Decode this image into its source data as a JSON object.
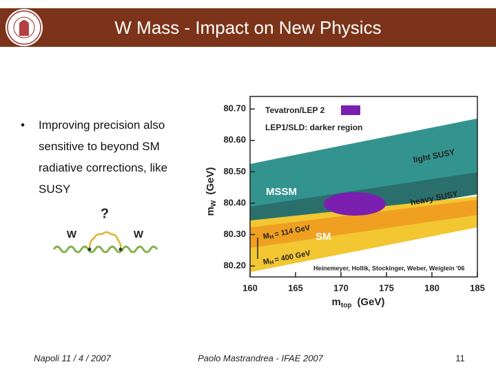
{
  "header": {
    "title": "W Mass - Impact on New Physics"
  },
  "bullets": [
    "Improving precision also sensitive to beyond SM radiative corrections, like SUSY"
  ],
  "diagram": {
    "question": "?",
    "left_label": "W",
    "right_label": "W"
  },
  "chart": {
    "legend": [
      "Tevatron/LEP 2",
      "LEP1/SLD: darker region"
    ],
    "annotations": {
      "light": "light SUSY",
      "heavy": "heavy SUSY",
      "mssm": "MSSM",
      "sm": "SM",
      "mh_low": {
        "symbol": "M",
        "sub": "H",
        "text": "= 114 GeV"
      },
      "mh_high": {
        "symbol": "M",
        "sub": "H",
        "text": "= 400 GeV"
      },
      "credit": "Heinemeyer, Hollik, Stockinger, Weber, Weiglein '06"
    },
    "x_label": {
      "symbol": "m",
      "sub": "top",
      "unit": "(GeV)"
    },
    "y_label": {
      "symbol": "m",
      "sub": "W",
      "unit": "(GeV)"
    },
    "xlim": [
      160,
      185
    ],
    "xticks": [
      160,
      165,
      170,
      175,
      180,
      185
    ],
    "ylim": [
      80.165,
      80.74
    ],
    "yticks": [
      {
        "value": 80.2,
        "label": "80.20"
      },
      {
        "value": 80.3,
        "label": "80.30"
      },
      {
        "value": 80.4,
        "label": "80.40"
      },
      {
        "value": 80.5,
        "label": "80.50"
      },
      {
        "value": 80.6,
        "label": "80.60"
      },
      {
        "value": 80.7,
        "label": "80.70"
      }
    ]
  },
  "footer": {
    "left": "Napoli 11 / 4 / 2007",
    "center": "Paolo Mastrandrea - IFAE 2007",
    "page": "11"
  }
}
